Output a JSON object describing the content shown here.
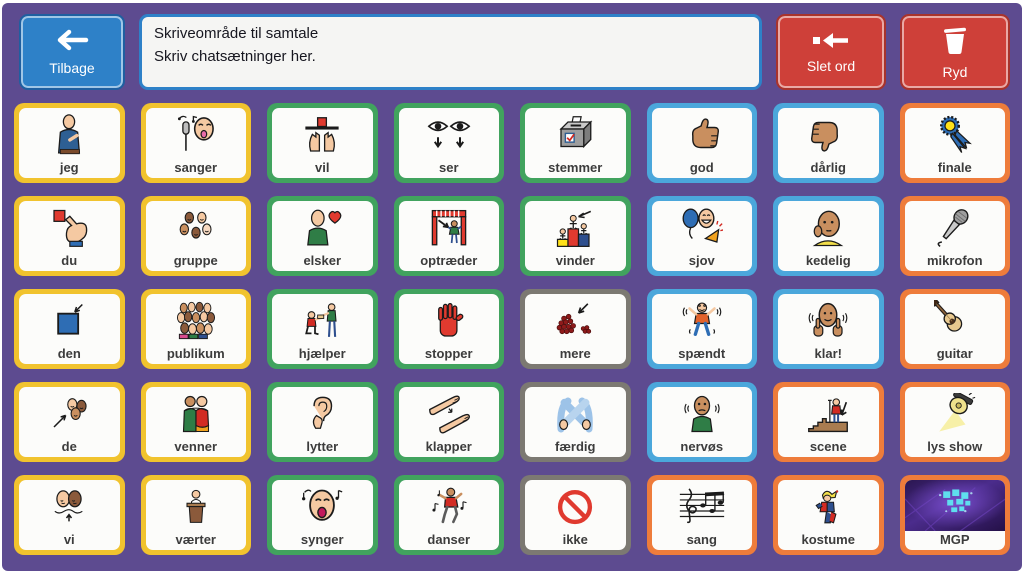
{
  "topbar": {
    "back_label": "Tilbage",
    "message_area": {
      "line1": "Skriveområde til samtale",
      "line2": "Skriv chatsætninger her."
    },
    "delete_word_label": "Slet ord",
    "clear_label": "Ryd"
  },
  "colors": {
    "background": "#5D4B90",
    "cell_bg": "#FCFCFA",
    "yellow": "#F1C32E",
    "green": "#41A35E",
    "blue": "#4BA7DB",
    "orange": "#EE7C3B",
    "gray": "#7C7972",
    "button_blue": "#2E81C8",
    "button_red": "#CE4039",
    "label_text": "#3C3C3C"
  },
  "grid": {
    "rows": 5,
    "cols": 8,
    "cells": [
      {
        "label": "jeg",
        "icon": "person-pointing-self-icon",
        "border": "yellow"
      },
      {
        "label": "sanger",
        "icon": "singer-microphone-icon",
        "border": "yellow"
      },
      {
        "label": "vil",
        "icon": "want-hands-shelf-icon",
        "border": "green"
      },
      {
        "label": "ser",
        "icon": "eyes-looking-icon",
        "border": "green"
      },
      {
        "label": "stemmer",
        "icon": "ballot-box-icon",
        "border": "green"
      },
      {
        "label": "god",
        "icon": "thumbs-up-icon",
        "border": "blue"
      },
      {
        "label": "dårlig",
        "icon": "thumbs-down-icon",
        "border": "blue"
      },
      {
        "label": "finale",
        "icon": "award-rosette-icon",
        "border": "orange"
      },
      {
        "label": "du",
        "icon": "pointing-at-you-icon",
        "border": "yellow"
      },
      {
        "label": "gruppe",
        "icon": "group-faces-icon",
        "border": "yellow"
      },
      {
        "label": "elsker",
        "icon": "person-heart-icon",
        "border": "green"
      },
      {
        "label": "optræder",
        "icon": "stage-performer-icon",
        "border": "green"
      },
      {
        "label": "vinder",
        "icon": "winners-podium-icon",
        "border": "green"
      },
      {
        "label": "sjov",
        "icon": "party-fun-icon",
        "border": "blue"
      },
      {
        "label": "kedelig",
        "icon": "bored-face-icon",
        "border": "blue"
      },
      {
        "label": "mikrofon",
        "icon": "microphone-icon",
        "border": "orange"
      },
      {
        "label": "den",
        "icon": "blue-square-icon",
        "border": "yellow"
      },
      {
        "label": "publikum",
        "icon": "audience-crowd-icon",
        "border": "yellow"
      },
      {
        "label": "hjælper",
        "icon": "helping-icon",
        "border": "green"
      },
      {
        "label": "stopper",
        "icon": "stop-hand-icon",
        "border": "green"
      },
      {
        "label": "mere",
        "icon": "more-pile-icon",
        "border": "gray"
      },
      {
        "label": "spændt",
        "icon": "excited-person-icon",
        "border": "blue"
      },
      {
        "label": "klar!",
        "icon": "ready-thumbs-icon",
        "border": "blue"
      },
      {
        "label": "guitar",
        "icon": "guitar-icon",
        "border": "orange"
      },
      {
        "label": "de",
        "icon": "them-group-icon",
        "border": "yellow"
      },
      {
        "label": "venner",
        "icon": "friends-icon",
        "border": "yellow"
      },
      {
        "label": "lytter",
        "icon": "listening-ear-icon",
        "border": "green"
      },
      {
        "label": "klapper",
        "icon": "clapping-hands-icon",
        "border": "green"
      },
      {
        "label": "færdig",
        "icon": "finished-crossed-arms-icon",
        "border": "gray"
      },
      {
        "label": "nervøs",
        "icon": "nervous-person-icon",
        "border": "blue"
      },
      {
        "label": "scene",
        "icon": "stage-steps-icon",
        "border": "orange"
      },
      {
        "label": "lys show",
        "icon": "spotlight-icon",
        "border": "orange"
      },
      {
        "label": "vi",
        "icon": "we-two-faces-icon",
        "border": "yellow"
      },
      {
        "label": "værter",
        "icon": "host-lectern-icon",
        "border": "yellow"
      },
      {
        "label": "synger",
        "icon": "singing-face-icon",
        "border": "green"
      },
      {
        "label": "danser",
        "icon": "dancing-person-icon",
        "border": "green"
      },
      {
        "label": "ikke",
        "icon": "not-prohibition-icon",
        "border": "gray"
      },
      {
        "label": "sang",
        "icon": "music-staff-icon",
        "border": "orange"
      },
      {
        "label": "kostume",
        "icon": "costume-jester-icon",
        "border": "orange"
      },
      {
        "label": "MGP",
        "icon": "mgp-photo",
        "border": "orange",
        "photo": true
      }
    ]
  }
}
